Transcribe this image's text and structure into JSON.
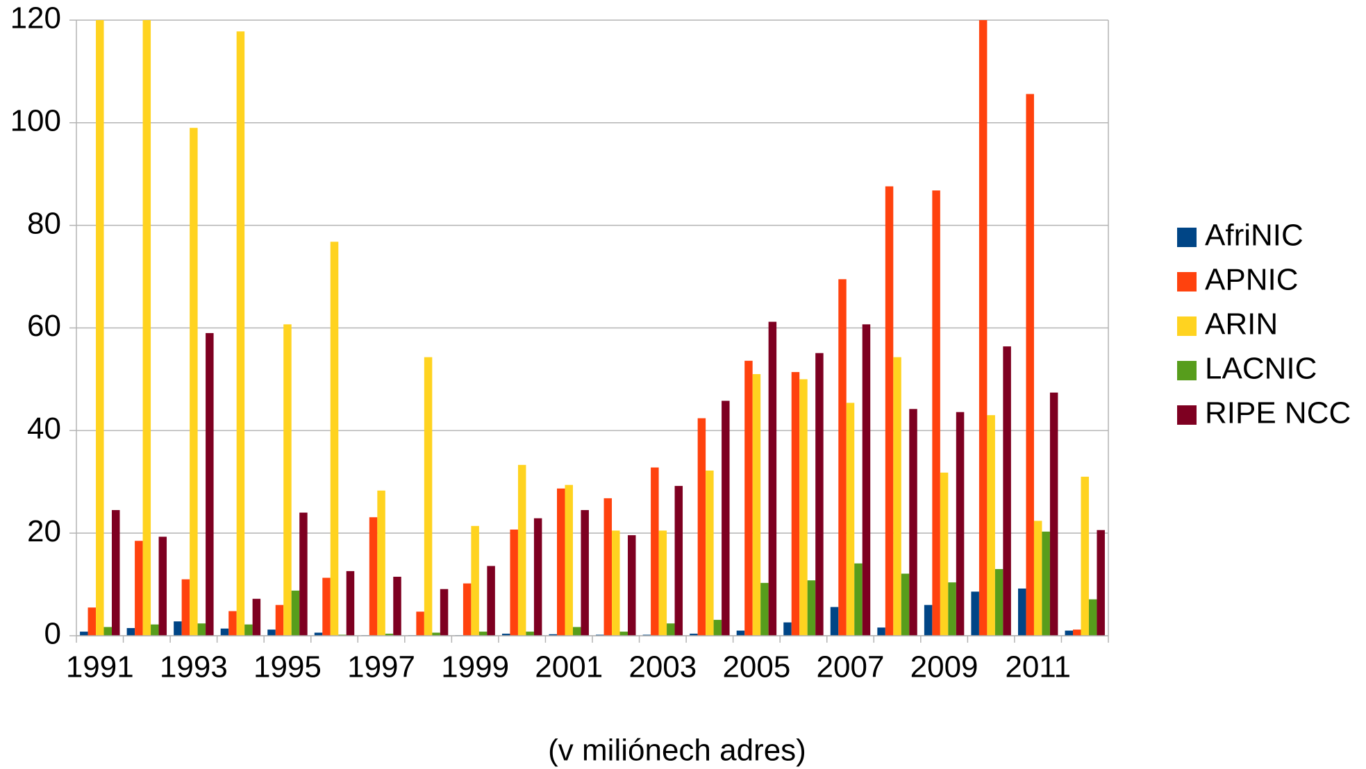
{
  "chart_data": {
    "type": "bar",
    "xlabel": "(v miliónech adres)",
    "categories": [
      "1991",
      null,
      "1993",
      null,
      "1995",
      null,
      "1997",
      null,
      "1999",
      null,
      "2001",
      null,
      "2003",
      null,
      "2005",
      null,
      "2007",
      null,
      "2009",
      null,
      "2011",
      null
    ],
    "series": [
      {
        "name": "AfriNIC",
        "color": "#004586",
        "values": [
          0.8,
          1.5,
          2.8,
          1.4,
          1.2,
          0.6,
          0.1,
          0.1,
          0.1,
          0.4,
          0.3,
          0.2,
          0.2,
          0.4,
          1,
          2.6,
          5.6,
          1.6,
          6,
          8.6,
          9.2,
          1
        ]
      },
      {
        "name": "APNIC",
        "color": "#ff420e",
        "values": [
          5.5,
          18.5,
          11,
          4.8,
          6,
          11.3,
          23.1,
          4.7,
          10.2,
          20.7,
          28.7,
          26.8,
          32.8,
          42.4,
          53.6,
          51.4,
          69.5,
          87.6,
          86.8,
          120,
          105.6,
          1.2
        ]
      },
      {
        "name": "ARIN",
        "color": "#ffd320",
        "values": [
          120,
          120,
          99,
          117.8,
          60.7,
          76.8,
          28.3,
          54.3,
          21.4,
          33.3,
          29.4,
          20.5,
          20.5,
          32.2,
          51,
          50,
          45.4,
          54.3,
          31.8,
          43,
          22.4,
          31
        ]
      },
      {
        "name": "LACNIC",
        "color": "#579d1c",
        "values": [
          1.7,
          2.2,
          2.4,
          2.2,
          8.8,
          0.2,
          0.4,
          0.6,
          0.8,
          0.8,
          1.7,
          0.8,
          2.4,
          3.1,
          10.3,
          10.8,
          14.1,
          12.1,
          10.4,
          13,
          20.3,
          7.1
        ]
      },
      {
        "name": "RIPE NCC",
        "color": "#7e0021",
        "values": [
          24.5,
          19.3,
          59,
          7.2,
          24,
          12.6,
          11.5,
          9.1,
          13.6,
          22.9,
          24.5,
          19.6,
          29.2,
          45.8,
          61.2,
          55.1,
          60.7,
          44.2,
          43.6,
          56.4,
          47.4,
          20.6
        ]
      }
    ],
    "ylim": [
      0,
      120
    ],
    "yticks": [
      0,
      20,
      40,
      60,
      80,
      100,
      120
    ],
    "grid": true,
    "legend": "right"
  }
}
